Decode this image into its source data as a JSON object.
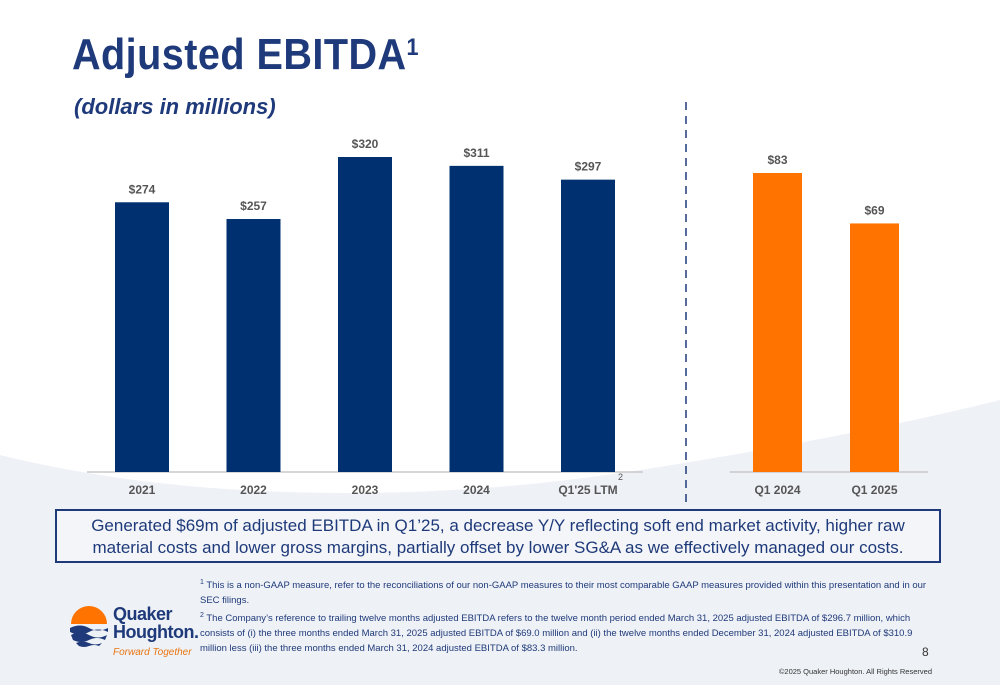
{
  "slide": {
    "title": "Adjusted EBITDA",
    "title_sup": "1",
    "subtitle": "(dollars in millions)",
    "callout": "Generated $69m of adjusted EBITDA in Q1’25, a decrease Y/Y reflecting soft end market activity, higher raw material costs and lower gross margins, partially offset by lower SG&A as we effectively managed our costs.",
    "footnote1_mark": "1",
    "footnote1": "This is a non-GAAP measure, refer to the reconciliations of our non-GAAP measures to their most comparable GAAP measures provided within this presentation and in our SEC filings.",
    "footnote2_mark": "2",
    "footnote2": "The Company’s reference to trailing twelve months adjusted EBITDA refers to the twelve month period ended March 31, 2025 adjusted EBITDA of $296.7 million, which consists of (i) the three months ended March 31, 2025 adjusted EBITDA of $69.0 million and (ii) the twelve months ended December 31, 2024 adjusted EBITDA of $310.9 million less (iii) the three months ended March 31, 2024 adjusted EBITDA of $83.3 million.",
    "page_number": "8",
    "copyright": "©2025 Quaker Houghton. All Rights Reserved"
  },
  "logo": {
    "name_line1": "Quaker",
    "name_line2": "Houghton.",
    "tagline": "Forward Together"
  },
  "colors": {
    "navy": "#003070",
    "orange": "#ff7300",
    "text_dark": "#1f3a7a"
  },
  "chart_data": [
    {
      "type": "bar",
      "categories": [
        "2021",
        "2022",
        "2023",
        "2024",
        "Q1'25 LTM"
      ],
      "category_footnotes": [
        "",
        "",
        "",
        "",
        "2"
      ],
      "values": [
        274,
        257,
        320,
        311,
        297
      ],
      "data_labels": [
        "$274",
        "$257",
        "$320",
        "$311",
        "$297"
      ],
      "color": "#003070",
      "ylim": [
        0,
        320
      ],
      "grid": false
    },
    {
      "type": "bar",
      "categories": [
        "Q1 2024",
        "Q1 2025"
      ],
      "values": [
        83,
        69
      ],
      "data_labels": [
        "$83",
        "$69"
      ],
      "color": "#ff7300",
      "ylim": [
        0,
        83
      ],
      "grid": false
    }
  ]
}
